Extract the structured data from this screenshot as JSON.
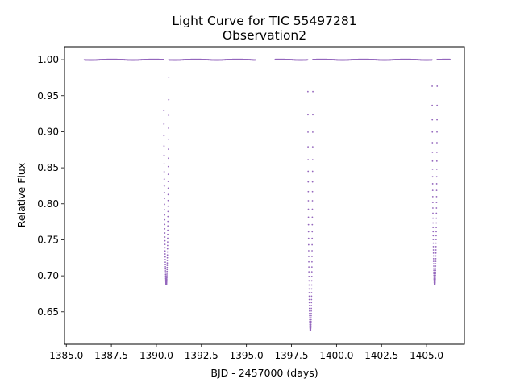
{
  "chart_data": {
    "type": "scatter",
    "title": "Light Curve for TIC 55497281",
    "subtitle": "Observation2",
    "xlabel": "BJD - 2457000 (days)",
    "ylabel": "Relative Flux",
    "xlim": [
      1384.9,
      1407.1
    ],
    "ylim": [
      0.605,
      1.018
    ],
    "xticks": [
      1385.0,
      1387.5,
      1390.0,
      1392.5,
      1395.0,
      1397.5,
      1400.0,
      1402.5,
      1405.0
    ],
    "xtick_labels": [
      "1385.0",
      "1387.5",
      "1390.0",
      "1392.5",
      "1395.0",
      "1397.5",
      "1400.0",
      "1402.5",
      "1405.0"
    ],
    "yticks": [
      0.65,
      0.7,
      0.75,
      0.8,
      0.85,
      0.9,
      0.95,
      1.0
    ],
    "ytick_labels": [
      "0.65",
      "0.70",
      "0.75",
      "0.80",
      "0.85",
      "0.90",
      "0.95",
      "1.00"
    ],
    "grid": false,
    "marker_color": "#9467bd",
    "baseline_flux": 1.0,
    "segments": [
      {
        "x_start": 1386.0,
        "x_end": 1395.5
      },
      {
        "x_start": 1396.6,
        "x_end": 1406.3
      }
    ],
    "transits": [
      {
        "center": 1390.55,
        "depth_flux": 0.688,
        "half_width": 0.14
      },
      {
        "center": 1398.55,
        "depth_flux": 0.624,
        "half_width": 0.14
      },
      {
        "center": 1405.45,
        "depth_flux": 0.688,
        "half_width": 0.14
      }
    ]
  }
}
